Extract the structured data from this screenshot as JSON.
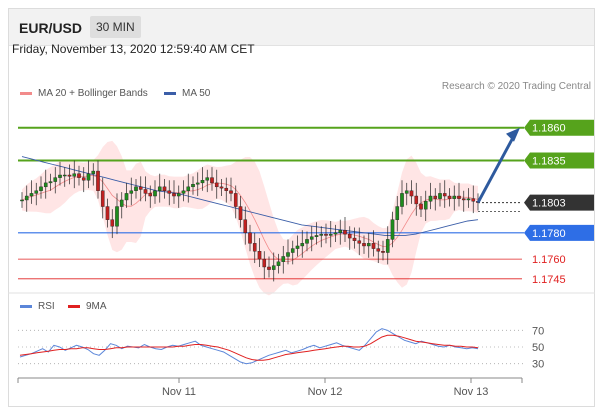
{
  "header": {
    "pair": "EUR/USD",
    "timeframe": "30 MIN"
  },
  "timestamp": "Friday, November 13, 2020 12:59:40 AM CET",
  "legend": {
    "ma20": {
      "label": "MA 20 + Bollinger Bands",
      "color": "#f28b8b"
    },
    "ma50": {
      "label": "MA 50",
      "color": "#3b5ea8"
    }
  },
  "credit": "Research © 2020 Trading Central",
  "rsi_legend": {
    "rsi": {
      "label": "RSI",
      "color": "#5b86d9"
    },
    "ma9": {
      "label": "9MA",
      "color": "#e02020"
    }
  },
  "chart_data": [
    {
      "type": "candlestick",
      "title": "",
      "x_ticks": [
        "Nov 11",
        "Nov 12",
        "Nov 13"
      ],
      "ylim": [
        1.1738,
        1.1875
      ],
      "current_price": {
        "value": 1.1803,
        "label": "1.1803",
        "color": "#333333"
      },
      "levels": [
        {
          "value": 1.186,
          "label": "1.1860",
          "type": "resistance",
          "color": "#56a31c"
        },
        {
          "value": 1.1835,
          "label": "1.1835",
          "type": "resistance",
          "color": "#56a31c"
        },
        {
          "value": 1.178,
          "label": "1.1780",
          "type": "pivot",
          "color": "#2e6ee6"
        },
        {
          "value": 1.176,
          "label": "1.1760",
          "type": "support",
          "color": "#e02020"
        },
        {
          "value": 1.1745,
          "label": "1.1745",
          "type": "support",
          "color": "#e02020"
        }
      ],
      "close_series": [
        1.1805,
        1.1808,
        1.181,
        1.1812,
        1.1815,
        1.1818,
        1.1819,
        1.1822,
        1.1824,
        1.1824,
        1.1823,
        1.1825,
        1.1822,
        1.182,
        1.1825,
        1.1827,
        1.1812,
        1.18,
        1.179,
        1.1785,
        1.18,
        1.1805,
        1.181,
        1.1812,
        1.1815,
        1.1813,
        1.181,
        1.1808,
        1.1812,
        1.1815,
        1.1812,
        1.181,
        1.1808,
        1.181,
        1.1812,
        1.1815,
        1.1817,
        1.1818,
        1.182,
        1.1822,
        1.1818,
        1.1815,
        1.1814,
        1.1812,
        1.181,
        1.18,
        1.179,
        1.178,
        1.1772,
        1.1766,
        1.176,
        1.1754,
        1.1752,
        1.1755,
        1.1758,
        1.1762,
        1.1765,
        1.1768,
        1.177,
        1.1772,
        1.1775,
        1.1777,
        1.1778,
        1.1779,
        1.1778,
        1.1779,
        1.178,
        1.1782,
        1.1779,
        1.1776,
        1.1774,
        1.1772,
        1.177,
        1.1772,
        1.1768,
        1.1766,
        1.1765,
        1.1775,
        1.179,
        1.18,
        1.181,
        1.1812,
        1.1808,
        1.1802,
        1.1798,
        1.1804,
        1.1808,
        1.1806,
        1.181,
        1.1808,
        1.1806,
        1.1808,
        1.1806,
        1.1805,
        1.1806,
        1.1804,
        1.1803
      ],
      "ma50_series": [
        1.1838,
        1.1836,
        1.1834,
        1.1832,
        1.183,
        1.1828,
        1.1826,
        1.1824,
        1.1822,
        1.182,
        1.1818,
        1.1816,
        1.1814,
        1.1812,
        1.1811,
        1.181,
        1.1808,
        1.1806,
        1.1804,
        1.1802,
        1.18,
        1.1798,
        1.1796,
        1.1794,
        1.1792,
        1.179,
        1.1788,
        1.1786,
        1.1785,
        1.1784,
        1.1783,
        1.1782,
        1.1781,
        1.178,
        1.1779,
        1.1778,
        1.1778,
        1.1778,
        1.1779,
        1.1781,
        1.1783,
        1.1785,
        1.1787,
        1.1789,
        1.179
      ],
      "annotation": {
        "type": "arrow",
        "from": 1.1803,
        "to": 1.186,
        "color": "#2e5a9e"
      }
    },
    {
      "type": "line",
      "title": "RSI",
      "ylim": [
        20,
        80
      ],
      "yticks": [
        70,
        50,
        30
      ],
      "series": [
        {
          "name": "RSI",
          "color": "#5b86d9",
          "values": [
            38,
            40,
            42,
            45,
            48,
            44,
            52,
            50,
            46,
            49,
            52,
            50,
            47,
            42,
            40,
            46,
            54,
            52,
            48,
            51,
            50,
            49,
            53,
            50,
            48,
            47,
            50,
            52,
            51,
            53,
            55,
            57,
            52,
            50,
            48,
            46,
            44,
            40,
            36,
            32,
            30,
            31,
            34,
            37,
            40,
            42,
            44,
            46,
            43,
            45,
            47,
            50,
            52,
            49,
            51,
            53,
            55,
            52,
            50,
            48,
            46,
            52,
            60,
            68,
            72,
            70,
            66,
            62,
            58,
            56,
            54,
            57,
            55,
            53,
            51,
            50,
            52,
            50,
            49,
            48,
            49,
            48
          ]
        },
        {
          "name": "9MA",
          "color": "#e02020",
          "values": [
            40,
            41,
            42,
            43,
            44,
            45,
            46,
            47,
            47,
            48,
            48,
            49,
            49,
            48,
            47,
            47,
            48,
            49,
            49,
            50,
            50,
            50,
            50,
            50,
            50,
            50,
            50,
            50,
            51,
            51,
            52,
            53,
            53,
            52,
            51,
            50,
            48,
            46,
            43,
            40,
            37,
            35,
            34,
            34,
            35,
            37,
            39,
            41,
            42,
            43,
            44,
            45,
            46,
            47,
            48,
            49,
            50,
            51,
            51,
            50,
            50,
            51,
            54,
            58,
            62,
            64,
            64,
            63,
            61,
            59,
            57,
            56,
            55,
            54,
            53,
            52,
            52,
            51,
            51,
            50,
            50,
            49
          ]
        }
      ]
    }
  ]
}
